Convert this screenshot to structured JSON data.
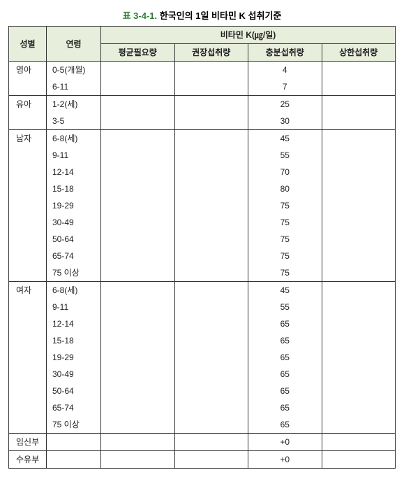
{
  "title_number": "표 3-4-1.",
  "title_text": "한국인의 1일 비타민 K 섭취기준",
  "header": {
    "gender": "성별",
    "age": "연령",
    "nutrient": "비타민 K(㎍/일)",
    "avg": "평균필요량",
    "rec": "권장섭취량",
    "ade": "충분섭취량",
    "ul": "상한섭취량"
  },
  "groups": [
    {
      "gender": "영아",
      "rows": [
        {
          "age": "0-5(개월)",
          "ade": "4"
        },
        {
          "age": "6-11",
          "ade": "7"
        }
      ]
    },
    {
      "gender": "유아",
      "rows": [
        {
          "age": "1-2(세)",
          "ade": "25"
        },
        {
          "age": "3-5",
          "ade": "30"
        }
      ]
    },
    {
      "gender": "남자",
      "rows": [
        {
          "age": "6-8(세)",
          "ade": "45"
        },
        {
          "age": "9-11",
          "ade": "55"
        },
        {
          "age": "12-14",
          "ade": "70"
        },
        {
          "age": "15-18",
          "ade": "80"
        },
        {
          "age": "19-29",
          "ade": "75"
        },
        {
          "age": "30-49",
          "ade": "75"
        },
        {
          "age": "50-64",
          "ade": "75"
        },
        {
          "age": "65-74",
          "ade": "75"
        },
        {
          "age": "75 이상",
          "ade": "75"
        }
      ]
    },
    {
      "gender": "여자",
      "rows": [
        {
          "age": "6-8(세)",
          "ade": "45"
        },
        {
          "age": "9-11",
          "ade": "55"
        },
        {
          "age": "12-14",
          "ade": "65"
        },
        {
          "age": "15-18",
          "ade": "65"
        },
        {
          "age": "19-29",
          "ade": "65"
        },
        {
          "age": "30-49",
          "ade": "65"
        },
        {
          "age": "50-64",
          "ade": "65"
        },
        {
          "age": "65-74",
          "ade": "65"
        },
        {
          "age": "75 이상",
          "ade": "65"
        }
      ]
    },
    {
      "gender": "임신부",
      "rows": [
        {
          "age": "",
          "ade": "+0"
        }
      ]
    },
    {
      "gender": "수유부",
      "rows": [
        {
          "age": "",
          "ade": "+0"
        }
      ]
    }
  ]
}
